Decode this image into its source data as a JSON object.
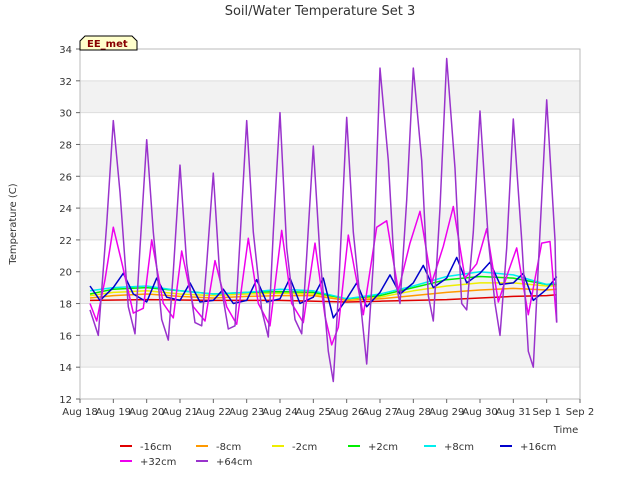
{
  "chart_data": {
    "type": "line",
    "title": "Soil/Water Temperature Set 3",
    "xlabel": "Time",
    "ylabel": "Temperature (C)",
    "ylim": [
      12,
      34
    ],
    "yticks": [
      12,
      14,
      16,
      18,
      20,
      22,
      24,
      26,
      28,
      30,
      32,
      34
    ],
    "xlim": [
      0,
      15
    ],
    "xticks": [
      {
        "x": 0,
        "label": "Aug 18"
      },
      {
        "x": 1,
        "label": "Aug 19"
      },
      {
        "x": 2,
        "label": "Aug 20"
      },
      {
        "x": 3,
        "label": "Aug 21"
      },
      {
        "x": 4,
        "label": "Aug 22"
      },
      {
        "x": 5,
        "label": "Aug 23"
      },
      {
        "x": 6,
        "label": "Aug 24"
      },
      {
        "x": 7,
        "label": "Aug 25"
      },
      {
        "x": 8,
        "label": "Aug 26"
      },
      {
        "x": 9,
        "label": "Aug 27"
      },
      {
        "x": 10,
        "label": "Aug 28"
      },
      {
        "x": 11,
        "label": "Aug 29"
      },
      {
        "x": 12,
        "label": "Aug 30"
      },
      {
        "x": 13,
        "label": "Aug 31"
      },
      {
        "x": 14,
        "label": "Sep 1"
      },
      {
        "x": 15,
        "label": "Sep 2"
      }
    ],
    "grid": "horizontal bands",
    "legend_position": "bottom",
    "annotation": "EE_met",
    "series": [
      {
        "name": "-16cm",
        "color": "#e00000",
        "x": [
          0.3,
          2,
          4,
          6,
          8,
          9,
          10,
          11,
          12,
          13,
          14,
          14.3
        ],
        "y": [
          18.2,
          18.25,
          18.2,
          18.2,
          18.1,
          18.15,
          18.2,
          18.25,
          18.35,
          18.45,
          18.5,
          18.55
        ]
      },
      {
        "name": "-8cm",
        "color": "#ff9900",
        "x": [
          0.3,
          1,
          2,
          3,
          4,
          5,
          6,
          7,
          8,
          9,
          10,
          11,
          12,
          13,
          14,
          14.3
        ],
        "y": [
          18.35,
          18.5,
          18.6,
          18.45,
          18.35,
          18.45,
          18.5,
          18.5,
          18.2,
          18.3,
          18.5,
          18.7,
          18.85,
          18.95,
          18.85,
          18.9
        ]
      },
      {
        "name": "-2cm",
        "color": "#eeee00",
        "x": [
          0.3,
          1,
          2,
          3,
          4,
          5,
          6,
          7,
          8,
          9,
          10,
          11,
          12,
          13,
          14,
          14.3
        ],
        "y": [
          18.5,
          18.7,
          18.8,
          18.6,
          18.5,
          18.6,
          18.65,
          18.6,
          18.3,
          18.4,
          18.8,
          19.1,
          19.3,
          19.3,
          19.1,
          19.1
        ]
      },
      {
        "name": "+2cm",
        "color": "#00ee00",
        "x": [
          0.3,
          1,
          2,
          3,
          4,
          5,
          6,
          7,
          8,
          9,
          10,
          11,
          12,
          13,
          14,
          14.3
        ],
        "y": [
          18.6,
          18.9,
          19.0,
          18.8,
          18.6,
          18.7,
          18.75,
          18.7,
          18.3,
          18.5,
          19.0,
          19.5,
          19.7,
          19.6,
          19.2,
          19.2
        ]
      },
      {
        "name": "+8cm",
        "color": "#00eeee",
        "x": [
          0.3,
          1,
          2,
          3,
          4,
          5,
          6,
          7,
          8,
          9,
          10,
          11,
          12,
          13,
          14,
          14.3
        ],
        "y": [
          18.8,
          19.0,
          19.1,
          18.8,
          18.6,
          18.7,
          18.9,
          18.8,
          18.3,
          18.6,
          19.1,
          19.7,
          20.0,
          19.8,
          19.2,
          19.3
        ]
      },
      {
        "name": "+16cm",
        "color": "#0000cc",
        "x": [
          0.3,
          0.6,
          1.0,
          1.3,
          1.6,
          2.0,
          2.3,
          2.6,
          3.0,
          3.3,
          3.6,
          4.0,
          4.3,
          4.6,
          5.0,
          5.3,
          5.6,
          6.0,
          6.3,
          6.6,
          7.0,
          7.3,
          7.6,
          8.0,
          8.3,
          8.6,
          9.0,
          9.3,
          9.6,
          10.0,
          10.3,
          10.6,
          11.0,
          11.3,
          11.6,
          12.0,
          12.3,
          12.6,
          13.0,
          13.3,
          13.6,
          14.0,
          14.3
        ],
        "y": [
          19.1,
          18.2,
          19.0,
          19.9,
          18.6,
          18.1,
          19.6,
          18.4,
          18.2,
          19.3,
          18.1,
          18.2,
          18.9,
          18.0,
          18.2,
          19.5,
          18.1,
          18.3,
          19.6,
          18.0,
          18.4,
          19.6,
          17.1,
          18.3,
          19.3,
          17.8,
          18.7,
          19.8,
          18.6,
          19.3,
          20.4,
          19.0,
          19.6,
          20.9,
          19.3,
          19.9,
          20.6,
          19.2,
          19.3,
          19.9,
          18.2,
          18.9,
          19.7
        ]
      },
      {
        "name": "+32cm",
        "color": "#ee00ee",
        "x": [
          0.3,
          0.5,
          0.75,
          1.0,
          1.25,
          1.6,
          1.9,
          2.15,
          2.5,
          2.8,
          3.05,
          3.4,
          3.75,
          4.05,
          4.4,
          4.7,
          5.05,
          5.35,
          5.7,
          6.05,
          6.35,
          6.7,
          7.05,
          7.35,
          7.55,
          7.75,
          8.05,
          8.25,
          8.5,
          8.9,
          9.2,
          9.55,
          9.9,
          10.2,
          10.55,
          10.9,
          11.2,
          11.55,
          11.9,
          12.2,
          12.55,
          12.85,
          13.1,
          13.45,
          13.85,
          14.1,
          14.3
        ],
        "y": [
          18.0,
          16.9,
          19.5,
          22.8,
          20.6,
          17.4,
          17.7,
          22.0,
          18.0,
          17.1,
          21.3,
          17.8,
          16.9,
          20.7,
          17.8,
          16.7,
          22.1,
          18.0,
          16.6,
          22.6,
          18.0,
          16.8,
          21.8,
          17.2,
          15.4,
          16.5,
          22.3,
          20.0,
          17.3,
          22.8,
          23.2,
          18.8,
          21.8,
          23.8,
          19.3,
          21.6,
          24.1,
          19.6,
          20.5,
          22.7,
          18.1,
          20.0,
          21.5,
          17.3,
          21.8,
          21.9,
          16.8
        ]
      },
      {
        "name": "+64cm",
        "color": "#9933cc",
        "x": [
          0.3,
          0.55,
          0.8,
          1.0,
          1.2,
          1.45,
          1.65,
          1.8,
          2.0,
          2.2,
          2.45,
          2.65,
          2.8,
          3.0,
          3.2,
          3.45,
          3.65,
          3.8,
          4.0,
          4.2,
          4.45,
          4.65,
          4.8,
          5.0,
          5.2,
          5.45,
          5.65,
          5.8,
          6.0,
          6.2,
          6.45,
          6.65,
          6.8,
          7.0,
          7.2,
          7.45,
          7.6,
          7.75,
          8.0,
          8.2,
          8.45,
          8.6,
          8.8,
          9.0,
          9.25,
          9.45,
          9.6,
          9.8,
          10.0,
          10.25,
          10.45,
          10.6,
          10.8,
          11.0,
          11.25,
          11.45,
          11.6,
          11.8,
          12.0,
          12.25,
          12.45,
          12.6,
          12.8,
          13.0,
          13.25,
          13.45,
          13.6,
          13.8,
          14.0,
          14.25,
          14.3
        ],
        "y": [
          17.6,
          16.0,
          23.0,
          29.5,
          25.0,
          17.8,
          16.1,
          21.5,
          28.3,
          22.5,
          17.0,
          15.7,
          20.0,
          26.7,
          20.5,
          16.8,
          16.6,
          20.5,
          26.2,
          19.5,
          16.4,
          16.6,
          22.0,
          29.5,
          22.5,
          17.6,
          15.9,
          22.5,
          30.0,
          21.5,
          17.0,
          16.1,
          21.0,
          27.9,
          21.0,
          15.0,
          13.1,
          18.5,
          29.7,
          22.5,
          17.3,
          14.2,
          20.5,
          32.8,
          27.0,
          19.5,
          18.0,
          24.5,
          32.8,
          27.0,
          18.5,
          16.9,
          24.0,
          33.4,
          26.5,
          18.0,
          17.6,
          22.5,
          30.1,
          22.0,
          18.0,
          16.0,
          21.5,
          29.6,
          22.0,
          15.0,
          14.0,
          22.5,
          30.8,
          22.0,
          16.8
        ]
      }
    ]
  }
}
